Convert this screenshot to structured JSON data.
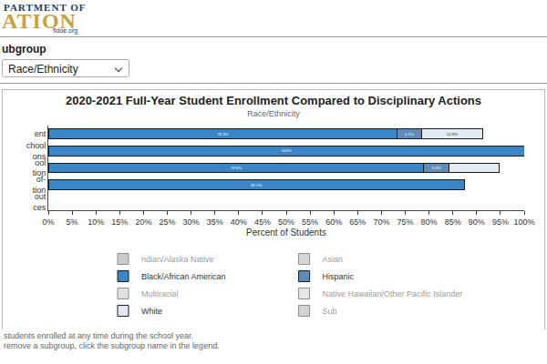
{
  "page": {
    "logo": [
      "PARTMENT OF",
      "ATION",
      "fldoe.org"
    ],
    "subgroup_label": "ubgroup",
    "subgroup_value": "Race/Ethnicity",
    "notes": [
      "students enrolled at any time during the school year.",
      "remove a subgroup, click the subgroup name in the legend."
    ]
  },
  "chart_data": {
    "type": "bar",
    "orientation": "horizontal",
    "stacked": true,
    "title": "2020-2021 Full-Year Student Enrollment Compared to Disciplinary Actions",
    "subtitle": "Race/Ethnicity",
    "x_label": "Percent of Students",
    "categories": [
      "ent",
      "chool\nons",
      "ool\ntion",
      "of-\ntion",
      "out\nces"
    ],
    "series": [
      {
        "name": "ndian/Alaska Native",
        "color": "#9c9c9c",
        "values": [
          null,
          null,
          null,
          null,
          null
        ],
        "value_labels": [
          null,
          null,
          null,
          null,
          null
        ]
      },
      {
        "name": "Asian",
        "color": "#b0b0b0",
        "values": [
          null,
          null,
          null,
          null,
          null
        ],
        "value_labels": [
          null,
          null,
          null,
          null,
          null
        ]
      },
      {
        "name": "Black/African American",
        "color": "#3a86c6",
        "values": [
          73.3,
          100,
          78.9,
          87.5,
          null
        ],
        "value_labels": [
          "73.3%",
          "100%",
          "78.9%",
          "87.5%",
          null
        ]
      },
      {
        "name": "Hispanic",
        "color": "#5f8db8",
        "values": [
          5.1,
          null,
          5.3,
          null,
          null
        ],
        "value_labels": [
          "5.1%",
          null,
          "5.3%",
          null,
          null
        ]
      },
      {
        "name": "Multiracial",
        "color": "#c4c4c4",
        "values": [
          null,
          null,
          null,
          null,
          null
        ],
        "value_labels": [
          null,
          null,
          null,
          null,
          null
        ]
      },
      {
        "name": "Native Hawaiian/Other Pacific Islander",
        "color": "#d0d0d0",
        "values": [
          null,
          null,
          null,
          null,
          null
        ],
        "value_labels": [
          null,
          null,
          null,
          null,
          null
        ]
      },
      {
        "name": "White",
        "color": "#e2eaf4",
        "values": [
          12.9,
          null,
          10.5,
          null,
          null
        ],
        "value_labels": [
          "12.9%",
          null,
          null,
          null,
          null
        ]
      },
      {
        "name": "Sub",
        "color": "#a8a8a8",
        "values": [
          null,
          null,
          null,
          null,
          null
        ],
        "value_labels": [
          null,
          null,
          null,
          null,
          null
        ]
      }
    ],
    "xlim": [
      0,
      100
    ],
    "xticks": [
      {
        "value": 0,
        "label": "0%"
      },
      {
        "value": 5,
        "label": "5%"
      },
      {
        "value": 10,
        "label": "10%"
      },
      {
        "value": 15,
        "label": "15%"
      },
      {
        "value": 20,
        "label": "20%"
      },
      {
        "value": 25,
        "label": "25%"
      },
      {
        "value": 30,
        "label": "30%"
      },
      {
        "value": 35,
        "label": "35%"
      },
      {
        "value": 40,
        "label": "40%"
      },
      {
        "value": 45,
        "label": "45%"
      },
      {
        "value": 50,
        "label": "50%"
      },
      {
        "value": 55,
        "label": "55%"
      },
      {
        "value": 60,
        "label": "60%"
      },
      {
        "value": 65,
        "label": "65%"
      },
      {
        "value": 70,
        "label": "70%"
      },
      {
        "value": 75,
        "label": "75%"
      },
      {
        "value": 80,
        "label": "80%"
      },
      {
        "value": 85,
        "label": "85%"
      },
      {
        "value": 90,
        "label": "90%"
      },
      {
        "value": 95,
        "label": "95%"
      },
      {
        "value": 100,
        "label": "100%"
      }
    ],
    "grid": false,
    "legend": "bottom",
    "data_labels": true
  }
}
